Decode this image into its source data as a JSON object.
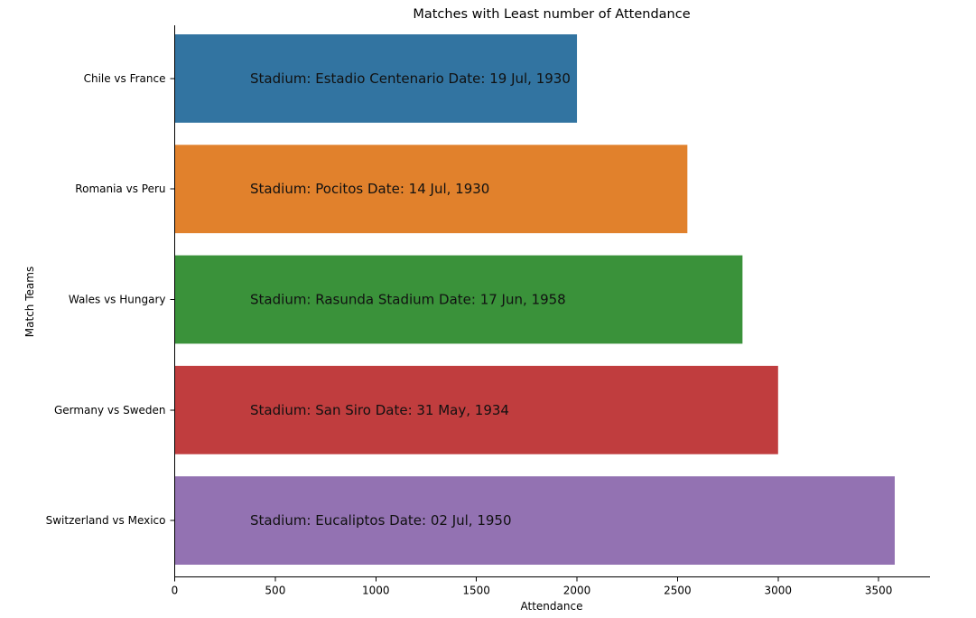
{
  "chart_data": {
    "type": "bar",
    "orientation": "horizontal",
    "title": "Matches with Least number of Attendance",
    "xlabel": "Attendance",
    "ylabel": "Match Teams",
    "categories": [
      "Chile vs France",
      "Romania vs Peru",
      "Wales vs Hungary",
      "Germany vs Sweden",
      "Switzerland vs Mexico"
    ],
    "values": [
      2000,
      2549,
      2823,
      3000,
      3580
    ],
    "colors": [
      "#3274a1",
      "#e1812c",
      "#3a923a",
      "#c03d3e",
      "#9372b2"
    ],
    "annotations": [
      "Stadium: Estadio Centenario Date: 19 Jul, 1930",
      "Stadium: Pocitos Date: 14 Jul, 1930",
      "Stadium: Rasunda Stadium Date: 17 Jun, 1958",
      "Stadium: San Siro Date: 31 May, 1934",
      "Stadium: Eucaliptos Date: 02 Jul, 1950"
    ],
    "annotation_x": 375,
    "xticks": [
      0,
      500,
      1000,
      1500,
      2000,
      2500,
      3000,
      3500
    ],
    "xlim": [
      0,
      3760
    ],
    "grid": false,
    "legend": "none"
  }
}
